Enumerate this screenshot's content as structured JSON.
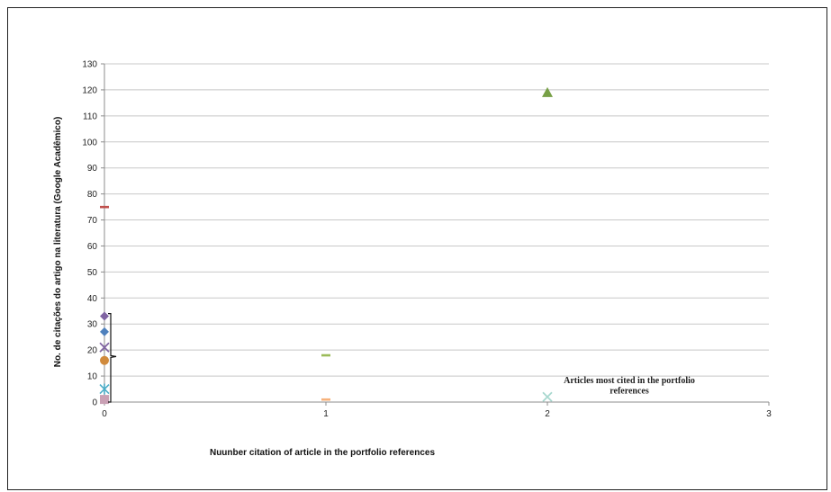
{
  "chart_data": {
    "type": "scatter",
    "title": "",
    "xlabel": "Nuunber citation of article in the portfolio references",
    "ylabel": "No. de citações do artigo na literatura (Google Acadêmico)",
    "xlim": [
      0,
      3
    ],
    "ylim": [
      0,
      130
    ],
    "xticks": [
      "0",
      "1",
      "2",
      "3"
    ],
    "yticks": [
      "0",
      "10",
      "20",
      "30",
      "40",
      "50",
      "60",
      "70",
      "80",
      "90",
      "100",
      "110",
      "120",
      "130"
    ],
    "grid": true,
    "legend": "none",
    "points": [
      {
        "x": 0,
        "y": 75,
        "marker": "dash",
        "color": "#c0504d"
      },
      {
        "x": 0,
        "y": 33,
        "marker": "diamond",
        "color": "#8064a2"
      },
      {
        "x": 0,
        "y": 27,
        "marker": "diamond",
        "color": "#4f81bd"
      },
      {
        "x": 0,
        "y": 21,
        "marker": "x",
        "color": "#8064a2"
      },
      {
        "x": 0,
        "y": 16,
        "marker": "circle",
        "color": "#d08a3c"
      },
      {
        "x": 0,
        "y": 5,
        "marker": "star",
        "color": "#4bacc6"
      },
      {
        "x": 0,
        "y": 1,
        "marker": "square",
        "color": "#c9a0b4"
      },
      {
        "x": 1,
        "y": 18,
        "marker": "dash",
        "color": "#9bbb59"
      },
      {
        "x": 1,
        "y": 1,
        "marker": "dash",
        "color": "#f7b27c"
      },
      {
        "x": 2,
        "y": 119,
        "marker": "triangle",
        "color": "#77a046"
      },
      {
        "x": 2,
        "y": 2,
        "marker": "x",
        "color": "#a8d8cf"
      }
    ],
    "annotation": {
      "line1": "Articles most cited in the portfolio",
      "line2": "references"
    }
  }
}
